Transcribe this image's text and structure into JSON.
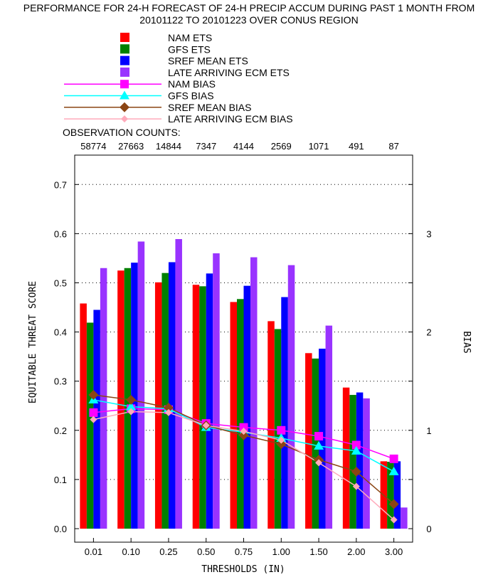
{
  "title_line1": "PERFORMANCE FOR 24-H FORECAST OF 24-H PRECIP ACCUM DURING PAST 1 MONTH FROM",
  "title_line2": "20101122 TO 20101223 OVER CONUS REGION",
  "observation_counts_label": "OBSERVATION COUNTS:",
  "observation_counts": [
    "58774",
    "27663",
    "14844",
    "7347",
    "4144",
    "2569",
    "1071",
    "491",
    "87"
  ],
  "chart_data": {
    "type": "bar",
    "title": "PERFORMANCE FOR 24-H FORECAST OF 24-H PRECIP ACCUM DURING PAST 1 MONTH FROM 20101122 TO 20101223 OVER CONUS REGION",
    "xlabel": "THRESHOLDS (IN)",
    "ylabel": "EQUITABLE THREAT SCORE",
    "y2label": "BIAS",
    "categories": [
      "0.01",
      "0.10",
      "0.25",
      "0.50",
      "0.75",
      "1.00",
      "1.50",
      "2.00",
      "3.00"
    ],
    "ylim": [
      0,
      0.78
    ],
    "yticks": [
      "0.0",
      "0.1",
      "0.2",
      "0.3",
      "0.4",
      "0.5",
      "0.6",
      "0.7"
    ],
    "y2lim": [
      0,
      3.9
    ],
    "y2ticks": [
      "0",
      "1",
      "2",
      "3"
    ],
    "grid": "horizontal dotted",
    "legend_position": "top",
    "series": [
      {
        "name": "NAM ETS",
        "kind": "bar",
        "color": "#ff0000",
        "values": [
          0.458,
          0.525,
          0.501,
          0.496,
          0.461,
          0.422,
          0.357,
          0.287,
          0.137
        ]
      },
      {
        "name": "GFS ETS",
        "kind": "bar",
        "color": "#008000",
        "values": [
          0.419,
          0.53,
          0.52,
          0.493,
          0.467,
          0.406,
          0.346,
          0.272,
          0.136
        ]
      },
      {
        "name": "SREF MEAN ETS",
        "kind": "bar",
        "color": "#0000ff",
        "values": [
          0.445,
          0.541,
          0.542,
          0.519,
          0.494,
          0.471,
          0.366,
          0.277,
          0.137
        ]
      },
      {
        "name": "LATE ARRIVING ECM ETS",
        "kind": "bar",
        "color": "#9933ff",
        "values": [
          0.53,
          0.584,
          0.589,
          0.56,
          0.552,
          0.536,
          0.413,
          0.265,
          0.043
        ]
      },
      {
        "name": "NAM BIAS",
        "kind": "line",
        "axis": "right",
        "color": "#ff00ff",
        "marker": "square",
        "values": [
          1.18,
          1.22,
          1.21,
          1.07,
          1.03,
          1.0,
          0.94,
          0.85,
          0.71
        ]
      },
      {
        "name": "GFS BIAS",
        "kind": "line",
        "axis": "right",
        "color": "#00ffff",
        "marker": "triangle",
        "values": [
          1.31,
          1.24,
          1.22,
          1.03,
          0.98,
          0.92,
          0.84,
          0.79,
          0.58
        ]
      },
      {
        "name": "SREF MEAN BIAS",
        "kind": "line",
        "axis": "right",
        "color": "#8b4513",
        "marker": "diamond",
        "values": [
          1.36,
          1.31,
          1.23,
          1.05,
          0.95,
          0.86,
          0.7,
          0.58,
          0.25
        ]
      },
      {
        "name": "LATE ARRIVING ECM BIAS",
        "kind": "line",
        "axis": "right",
        "color": "#ffaabb",
        "marker": "small-diamond",
        "values": [
          1.11,
          1.19,
          1.18,
          1.05,
          0.99,
          0.9,
          0.67,
          0.43,
          0.09
        ]
      }
    ]
  }
}
